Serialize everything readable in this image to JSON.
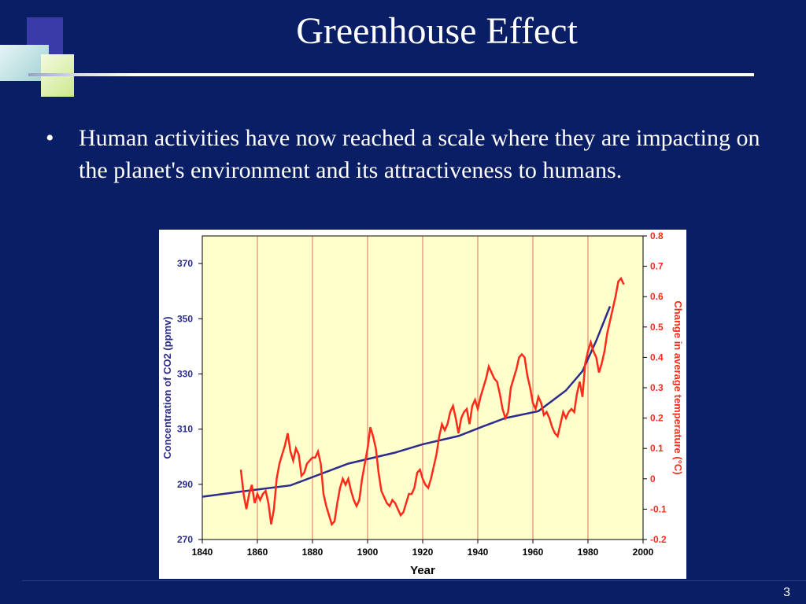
{
  "slide": {
    "title": "Greenhouse Effect",
    "bullet_symbol": "•",
    "bullet_text": "Human activities have now reached a scale where they are impacting on the planet's environment and its attractiveness to humans.",
    "page_number": "3"
  },
  "colors": {
    "background": "#0a1e66",
    "plot_area": "#ffffcc",
    "co2_series": "#2c2c8c",
    "temperature_series": "#ff2a1a",
    "grid": "#cc3333"
  },
  "chart_data": {
    "type": "line",
    "title": "",
    "xlabel": "Year",
    "ylabel_left": "Concentration of CO2 (ppmv)",
    "ylabel_right": "Change in average temperature (°C)",
    "xlim": [
      1840,
      2000
    ],
    "ylim_left": [
      270,
      380
    ],
    "ylim_right": [
      -0.2,
      0.8
    ],
    "x_ticks": [
      "1840",
      "1860",
      "1880",
      "1900",
      "1920",
      "1940",
      "1960",
      "1980",
      "2000"
    ],
    "y_left_ticks": [
      "270",
      "290",
      "310",
      "330",
      "350",
      "370"
    ],
    "y_right_ticks": [
      "-0.2",
      "-0.1",
      "0",
      "0.1",
      "0.2",
      "0.3",
      "0.4",
      "0.5",
      "0.6",
      "0.7",
      "0.8"
    ],
    "grid": "vertical",
    "series": [
      {
        "axis": "left",
        "x": [
          1840,
          1855,
          1872,
          1893,
          1910,
          1920,
          1933,
          1942,
          1950,
          1962,
          1972,
          1978,
          1983,
          1988
        ],
        "y": [
          285.5,
          287.5,
          289.6,
          297.5,
          301.5,
          304.5,
          307.5,
          311,
          314,
          316.5,
          324,
          331,
          342,
          354.5
        ]
      },
      {
        "axis": "right",
        "x": [
          1854,
          1855,
          1856,
          1857,
          1858,
          1859,
          1860,
          1861,
          1862,
          1863,
          1864,
          1865,
          1866,
          1867,
          1868,
          1869,
          1870,
          1871,
          1872,
          1873,
          1874,
          1875,
          1876,
          1877,
          1878,
          1879,
          1880,
          1881,
          1882,
          1883,
          1884,
          1885,
          1886,
          1887,
          1888,
          1889,
          1890,
          1891,
          1892,
          1893,
          1894,
          1895,
          1896,
          1897,
          1898,
          1899,
          1900,
          1901,
          1902,
          1903,
          1904,
          1905,
          1906,
          1907,
          1908,
          1909,
          1910,
          1911,
          1912,
          1913,
          1914,
          1915,
          1916,
          1917,
          1918,
          1919,
          1920,
          1921,
          1922,
          1923,
          1924,
          1925,
          1926,
          1927,
          1928,
          1929,
          1930,
          1931,
          1932,
          1933,
          1934,
          1935,
          1936,
          1937,
          1938,
          1939,
          1940,
          1941,
          1942,
          1943,
          1944,
          1945,
          1946,
          1947,
          1948,
          1949,
          1950,
          1951,
          1952,
          1953,
          1954,
          1955,
          1956,
          1957,
          1958,
          1959,
          1960,
          1961,
          1962,
          1963,
          1964,
          1965,
          1966,
          1967,
          1968,
          1969,
          1970,
          1971,
          1972,
          1973,
          1974,
          1975,
          1976,
          1977,
          1978,
          1979,
          1980,
          1981,
          1982,
          1983,
          1984,
          1985,
          1986,
          1987,
          1988,
          1989,
          1990,
          1991,
          1992,
          1993
        ],
        "y": [
          0.03,
          -0.05,
          -0.1,
          -0.05,
          -0.02,
          -0.08,
          -0.05,
          -0.07,
          -0.05,
          -0.04,
          -0.08,
          -0.15,
          -0.1,
          0.0,
          0.05,
          0.08,
          0.11,
          0.15,
          0.09,
          0.06,
          0.1,
          0.08,
          0.01,
          0.02,
          0.05,
          0.06,
          0.07,
          0.07,
          0.09,
          0.05,
          -0.05,
          -0.09,
          -0.12,
          -0.15,
          -0.14,
          -0.08,
          -0.03,
          0.0,
          -0.02,
          0.0,
          -0.04,
          -0.07,
          -0.09,
          -0.07,
          0.0,
          0.05,
          0.1,
          0.17,
          0.14,
          0.1,
          0.02,
          -0.04,
          -0.06,
          -0.08,
          -0.09,
          -0.07,
          -0.08,
          -0.1,
          -0.12,
          -0.11,
          -0.08,
          -0.05,
          -0.05,
          -0.03,
          0.02,
          0.03,
          0.0,
          -0.02,
          -0.03,
          0.0,
          0.04,
          0.08,
          0.14,
          0.18,
          0.16,
          0.18,
          0.22,
          0.24,
          0.2,
          0.15,
          0.2,
          0.22,
          0.23,
          0.18,
          0.24,
          0.26,
          0.23,
          0.27,
          0.3,
          0.33,
          0.37,
          0.35,
          0.33,
          0.32,
          0.28,
          0.23,
          0.2,
          0.22,
          0.3,
          0.33,
          0.36,
          0.4,
          0.41,
          0.4,
          0.34,
          0.3,
          0.25,
          0.23,
          0.27,
          0.25,
          0.21,
          0.22,
          0.2,
          0.17,
          0.15,
          0.14,
          0.18,
          0.22,
          0.2,
          0.22,
          0.23,
          0.22,
          0.28,
          0.32,
          0.27,
          0.38,
          0.42,
          0.45,
          0.42,
          0.4,
          0.35,
          0.38,
          0.42,
          0.48,
          0.52,
          0.56,
          0.6,
          0.65,
          0.66,
          0.64
        ]
      }
    ]
  }
}
